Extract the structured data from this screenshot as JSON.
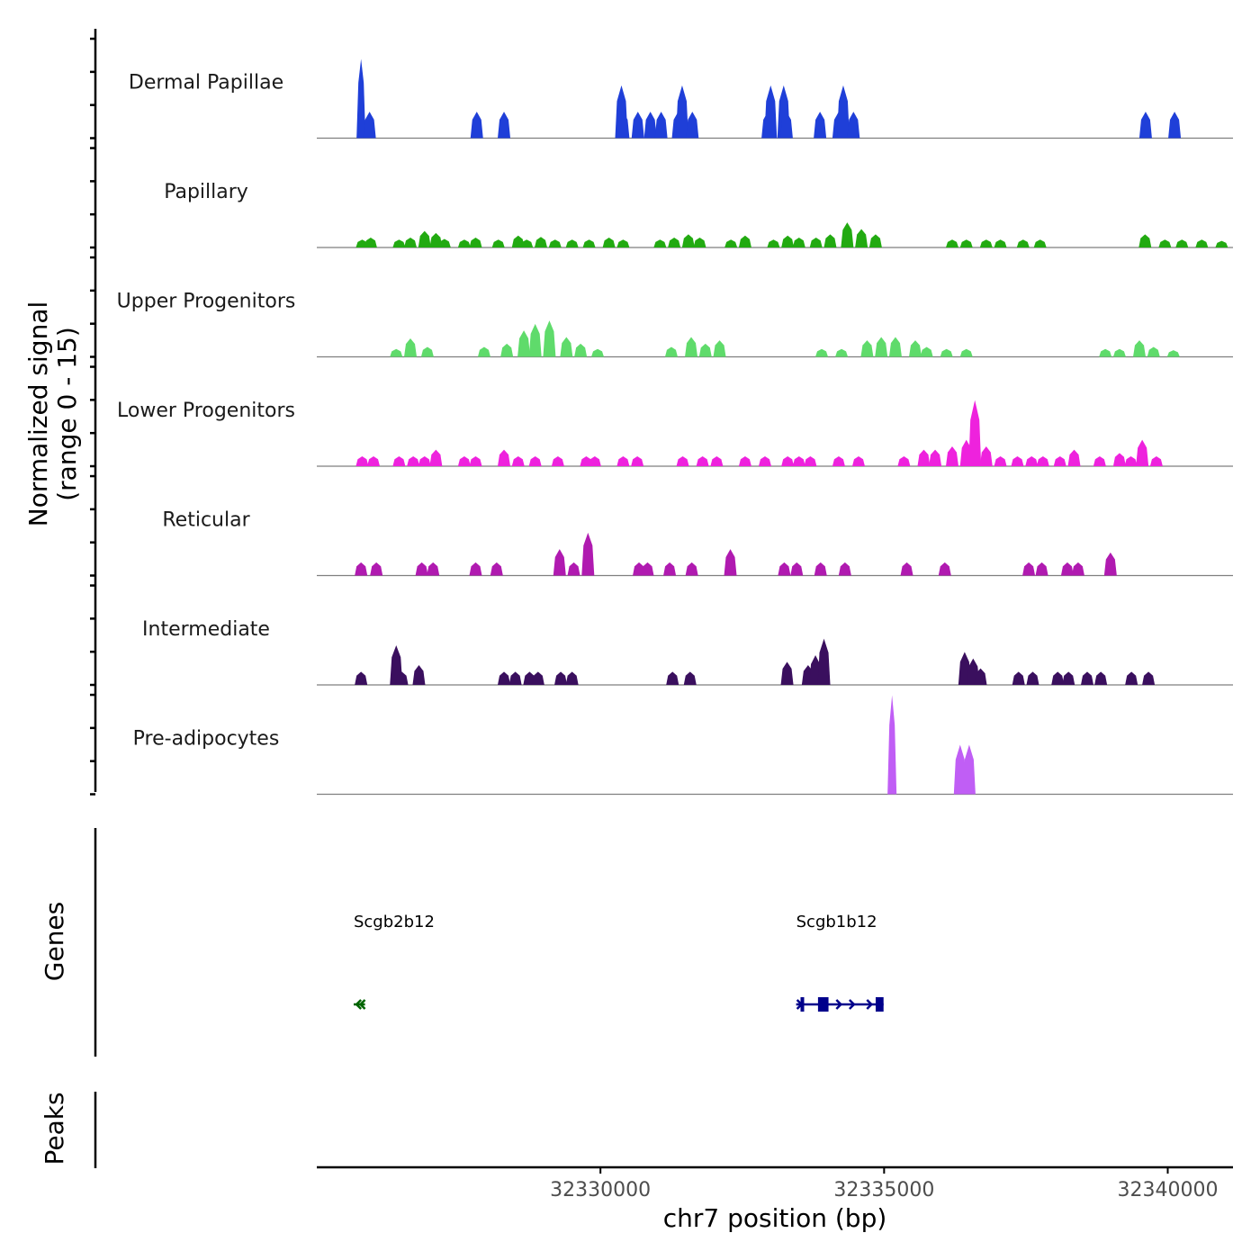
{
  "chart_data": {
    "type": "coverage",
    "title": "",
    "xlabel": "chr7 position (bp)",
    "ylabel_line1": "Normalized signal",
    "ylabel_line2": "(range 0 - 15)",
    "genes_axis_label": "Genes",
    "peaks_axis_label": "Peaks",
    "x_range": [
      32325000,
      32341150
    ],
    "x_ticks": [
      32330000,
      32335000,
      32340000
    ],
    "x_tick_labels": [
      "32330000",
      "32335000",
      "32340000"
    ],
    "y_range": [
      0,
      15
    ],
    "tracks": [
      {
        "name": "Dermal Papillae",
        "color": "#1f3fd8",
        "peaks": [
          [
            32325780,
            12
          ],
          [
            32325930,
            4
          ],
          [
            32327820,
            4
          ],
          [
            32328300,
            4
          ],
          [
            32330370,
            8
          ],
          [
            32330400,
            4
          ],
          [
            32330660,
            4
          ],
          [
            32330880,
            4
          ],
          [
            32331070,
            4
          ],
          [
            32331370,
            4
          ],
          [
            32331440,
            8
          ],
          [
            32331620,
            4
          ],
          [
            32332950,
            4
          ],
          [
            32333000,
            8
          ],
          [
            32333230,
            8
          ],
          [
            32333280,
            4
          ],
          [
            32333870,
            4
          ],
          [
            32334200,
            4
          ],
          [
            32334280,
            8
          ],
          [
            32334460,
            4
          ],
          [
            32339610,
            4
          ],
          [
            32340120,
            4
          ]
        ]
      },
      {
        "name": "Papillary",
        "color": "#22aa11",
        "peaks": [
          [
            32325800,
            1.2
          ],
          [
            32325950,
            1.5
          ],
          [
            32326450,
            1.2
          ],
          [
            32326650,
            1.5
          ],
          [
            32326900,
            2.5
          ],
          [
            32327100,
            2.2
          ],
          [
            32327250,
            1.3
          ],
          [
            32327600,
            1.2
          ],
          [
            32327800,
            1.5
          ],
          [
            32328200,
            1.2
          ],
          [
            32328550,
            1.8
          ],
          [
            32328700,
            1.2
          ],
          [
            32328950,
            1.6
          ],
          [
            32329200,
            1.2
          ],
          [
            32329500,
            1.2
          ],
          [
            32329800,
            1.2
          ],
          [
            32330150,
            1.5
          ],
          [
            32330400,
            1.2
          ],
          [
            32331050,
            1.2
          ],
          [
            32331300,
            1.5
          ],
          [
            32331550,
            2
          ],
          [
            32331750,
            1.5
          ],
          [
            32332300,
            1.2
          ],
          [
            32332550,
            1.8
          ],
          [
            32333050,
            1.2
          ],
          [
            32333300,
            1.8
          ],
          [
            32333500,
            1.5
          ],
          [
            32333800,
            1.5
          ],
          [
            32334050,
            2
          ],
          [
            32334350,
            3.8
          ],
          [
            32334600,
            2.8
          ],
          [
            32334850,
            2
          ],
          [
            32336200,
            1.2
          ],
          [
            32336450,
            1.2
          ],
          [
            32336800,
            1.2
          ],
          [
            32337050,
            1.2
          ],
          [
            32337450,
            1.2
          ],
          [
            32337750,
            1.2
          ],
          [
            32339600,
            2
          ],
          [
            32339950,
            1.2
          ],
          [
            32340250,
            1.2
          ],
          [
            32340600,
            1.2
          ],
          [
            32340950,
            1
          ]
        ]
      },
      {
        "name": "Upper Progenitors",
        "color": "#5fdb6b",
        "peaks": [
          [
            32326400,
            1.2
          ],
          [
            32326650,
            2.8
          ],
          [
            32326950,
            1.5
          ],
          [
            32327950,
            1.5
          ],
          [
            32328350,
            2
          ],
          [
            32328650,
            4
          ],
          [
            32328850,
            5
          ],
          [
            32329100,
            5.5
          ],
          [
            32329400,
            3
          ],
          [
            32329650,
            2
          ],
          [
            32329950,
            1.2
          ],
          [
            32331250,
            1.5
          ],
          [
            32331600,
            3
          ],
          [
            32331850,
            2
          ],
          [
            32332100,
            2.5
          ],
          [
            32333900,
            1.2
          ],
          [
            32334250,
            1.2
          ],
          [
            32334700,
            2.5
          ],
          [
            32334950,
            3
          ],
          [
            32335200,
            3
          ],
          [
            32335550,
            2.5
          ],
          [
            32335750,
            1.5
          ],
          [
            32336100,
            1.2
          ],
          [
            32336450,
            1.2
          ],
          [
            32338900,
            1.2
          ],
          [
            32339150,
            1.2
          ],
          [
            32339500,
            2.5
          ],
          [
            32339750,
            1.5
          ],
          [
            32340100,
            1
          ]
        ]
      },
      {
        "name": "Lower Progenitors",
        "color": "#ee22dd",
        "peaks": [
          [
            32325800,
            1.5
          ],
          [
            32326000,
            1.5
          ],
          [
            32326450,
            1.5
          ],
          [
            32326700,
            1.5
          ],
          [
            32326900,
            1.5
          ],
          [
            32327100,
            2.5
          ],
          [
            32327600,
            1.5
          ],
          [
            32327800,
            1.5
          ],
          [
            32328300,
            2.5
          ],
          [
            32328550,
            1.5
          ],
          [
            32328850,
            1.5
          ],
          [
            32329250,
            1.5
          ],
          [
            32329750,
            1.5
          ],
          [
            32329900,
            1.5
          ],
          [
            32330400,
            1.5
          ],
          [
            32330650,
            1.5
          ],
          [
            32331450,
            1.5
          ],
          [
            32331800,
            1.5
          ],
          [
            32332050,
            1.5
          ],
          [
            32332550,
            1.5
          ],
          [
            32332900,
            1.5
          ],
          [
            32333300,
            1.5
          ],
          [
            32333500,
            1.5
          ],
          [
            32333700,
            1.5
          ],
          [
            32334200,
            1.5
          ],
          [
            32334550,
            1.5
          ],
          [
            32335350,
            1.5
          ],
          [
            32335700,
            2.5
          ],
          [
            32335900,
            2.5
          ],
          [
            32336200,
            3
          ],
          [
            32336450,
            4
          ],
          [
            32336600,
            10
          ],
          [
            32336800,
            3
          ],
          [
            32337050,
            1.5
          ],
          [
            32337350,
            1.5
          ],
          [
            32337600,
            1.5
          ],
          [
            32337800,
            1.5
          ],
          [
            32338100,
            1.5
          ],
          [
            32338350,
            2.5
          ],
          [
            32338800,
            1.5
          ],
          [
            32339150,
            2
          ],
          [
            32339350,
            1.5
          ],
          [
            32339550,
            4
          ],
          [
            32339800,
            1.5
          ]
        ]
      },
      {
        "name": "Reticular",
        "color": "#b01ab0",
        "peaks": [
          [
            32325780,
            2
          ],
          [
            32326050,
            2
          ],
          [
            32326850,
            2
          ],
          [
            32327050,
            2
          ],
          [
            32327800,
            2
          ],
          [
            32328170,
            2
          ],
          [
            32329280,
            4
          ],
          [
            32329530,
            2
          ],
          [
            32329780,
            6.5
          ],
          [
            32330680,
            2
          ],
          [
            32330830,
            2
          ],
          [
            32331220,
            2
          ],
          [
            32331610,
            2
          ],
          [
            32332290,
            4
          ],
          [
            32333240,
            2
          ],
          [
            32333460,
            2
          ],
          [
            32333880,
            2
          ],
          [
            32334310,
            2
          ],
          [
            32335400,
            2
          ],
          [
            32336070,
            2
          ],
          [
            32337550,
            2
          ],
          [
            32337780,
            2
          ],
          [
            32338230,
            2
          ],
          [
            32338420,
            2
          ],
          [
            32338990,
            3.5
          ]
        ]
      },
      {
        "name": "Intermediate",
        "color": "#3a0f5e",
        "peaks": [
          [
            32325780,
            2
          ],
          [
            32326400,
            6
          ],
          [
            32326500,
            2
          ],
          [
            32326800,
            3
          ],
          [
            32328300,
            2
          ],
          [
            32328500,
            2
          ],
          [
            32328750,
            2
          ],
          [
            32328900,
            2
          ],
          [
            32329300,
            2
          ],
          [
            32329500,
            2
          ],
          [
            32331270,
            2
          ],
          [
            32331580,
            2
          ],
          [
            32333290,
            3.5
          ],
          [
            32333660,
            3
          ],
          [
            32333790,
            4.5
          ],
          [
            32333940,
            7
          ],
          [
            32336420,
            5
          ],
          [
            32336570,
            4
          ],
          [
            32336700,
            2.5
          ],
          [
            32337370,
            2
          ],
          [
            32337620,
            2
          ],
          [
            32338060,
            2
          ],
          [
            32338250,
            2
          ],
          [
            32338580,
            2
          ],
          [
            32338820,
            2
          ],
          [
            32339360,
            2
          ],
          [
            32339660,
            2
          ]
        ]
      },
      {
        "name": "Pre-adipocytes",
        "color": "#c05ef5",
        "peaks": [
          [
            32335140,
            15
          ],
          [
            32336340,
            7.5
          ],
          [
            32336500,
            7.5
          ]
        ]
      }
    ],
    "genes": [
      {
        "name": "Scgb2b12",
        "color": "#006400",
        "start": 32325650,
        "end": 32325850,
        "strand": "-"
      },
      {
        "name": "Scgb1b12",
        "color": "#00008b",
        "start": 32333450,
        "end": 32334990,
        "strand": "+"
      }
    ]
  }
}
